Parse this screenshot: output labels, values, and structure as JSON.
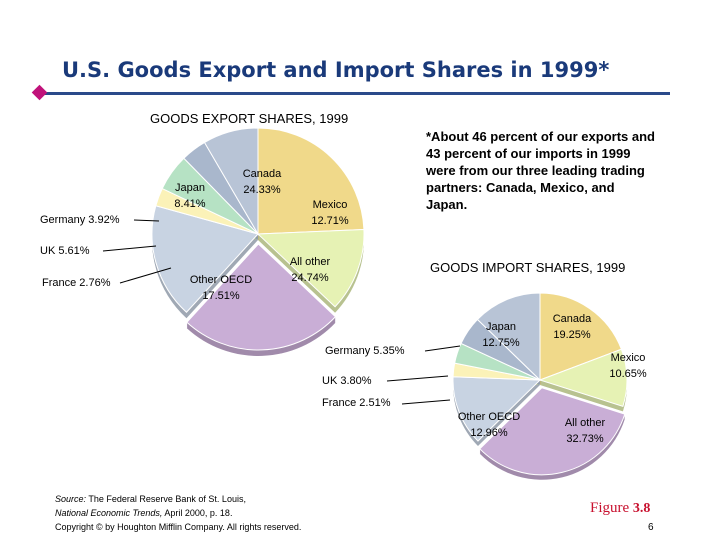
{
  "slide": {
    "title": "U.S. Goods Export and Import Shares in 1999*",
    "note": "*About 46 percent of our exports and 43 percent of our imports in 1999 were from our three leading trading partners: Canada, Mexico, and Japan.",
    "source_prefix": "Source:",
    "source_rest": " The Federal Reserve Bank of St. Louis,",
    "source_line2_italic": "National Economic Trends,",
    "source_line2_rest": " April 2000, p. 18.",
    "copyright": "Copyright © by Houghton Mifflin Company. All rights reserved.",
    "figure_word": "Figure",
    "figure_num": "3.8",
    "page_number": "6"
  },
  "colors": {
    "title": "#1a3a7a",
    "Canada": "#f0d98a",
    "Mexico": "#e6f2b4",
    "All other": "#c9aed6",
    "Other OECD": "#c8d3e2",
    "France": "#fbf2b8",
    "UK": "#b6e2c4",
    "Germany": "#a9b7cc",
    "Japan": "#b8c4d6"
  },
  "chart_data": [
    {
      "type": "pie",
      "title": "GOODS EXPORT SHARES, 1999",
      "slices": [
        {
          "name": "Canada",
          "label": "Canada",
          "value_label": "24.33%",
          "value": 24.33
        },
        {
          "name": "Mexico",
          "label": "Mexico",
          "value_label": "12.71%",
          "value": 12.71
        },
        {
          "name": "All other",
          "label": "All other",
          "value_label": "24.74%",
          "value": 24.74
        },
        {
          "name": "Other OECD",
          "label": "Other OECD",
          "value_label": "17.51%",
          "value": 17.51
        },
        {
          "name": "France",
          "label": "France",
          "value_label": "2.76%",
          "value": 2.76
        },
        {
          "name": "UK",
          "label": "UK",
          "value_label": "5.61%",
          "value": 5.61
        },
        {
          "name": "Germany",
          "label": "Germany",
          "value_label": "3.92%",
          "value": 3.92
        },
        {
          "name": "Japan",
          "label": "Japan",
          "value_label": "8.41%",
          "value": 8.41
        }
      ]
    },
    {
      "type": "pie",
      "title": "GOODS IMPORT SHARES, 1999",
      "slices": [
        {
          "name": "Canada",
          "label": "Canada",
          "value_label": "19.25%",
          "value": 19.25
        },
        {
          "name": "Mexico",
          "label": "Mexico",
          "value_label": "10.65%",
          "value": 10.65
        },
        {
          "name": "All other",
          "label": "All other",
          "value_label": "32.73%",
          "value": 32.73
        },
        {
          "name": "Other OECD",
          "label": "Other OECD",
          "value_label": "12.96%",
          "value": 12.96
        },
        {
          "name": "France",
          "label": "France",
          "value_label": "2.51%",
          "value": 2.51
        },
        {
          "name": "UK",
          "label": "UK",
          "value_label": "3.80%",
          "value": 3.8
        },
        {
          "name": "Germany",
          "label": "Germany",
          "value_label": "5.35%",
          "value": 5.35
        },
        {
          "name": "Japan",
          "label": "Japan",
          "value_label": "12.75%",
          "value": 12.75
        }
      ]
    }
  ]
}
